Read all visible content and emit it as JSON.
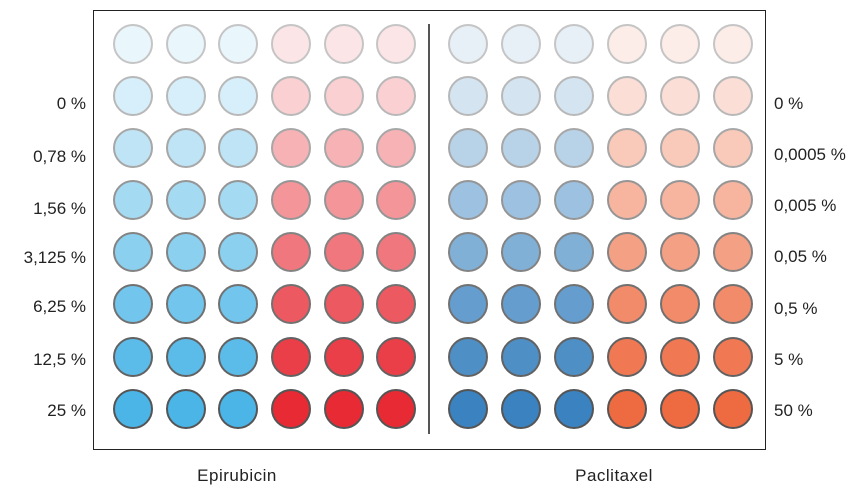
{
  "groups": [
    {
      "name": "Epirubicin",
      "concentrations": [
        "0 %",
        "0,78 %",
        "1,56 %",
        "3,125 %",
        "6,25 %",
        "12,5 %",
        "25 %"
      ],
      "colors": {
        "cool": "#4ab5e6",
        "warm": "#e82a34"
      }
    },
    {
      "name": "Paclitaxel",
      "concentrations": [
        "0 %",
        "0,0005 %",
        "0,005 %",
        "0,05 %",
        "0,5 %",
        "5 %",
        "50 %"
      ],
      "colors": {
        "cool": "#3a83c0",
        "warm": "#ee6a40"
      }
    }
  ],
  "plate": {
    "rows": 8,
    "wells_per_color_per_group": 3,
    "intensity_levels": [
      0.12,
      0.22,
      0.36,
      0.5,
      0.64,
      0.78,
      0.9,
      1.0
    ]
  }
}
